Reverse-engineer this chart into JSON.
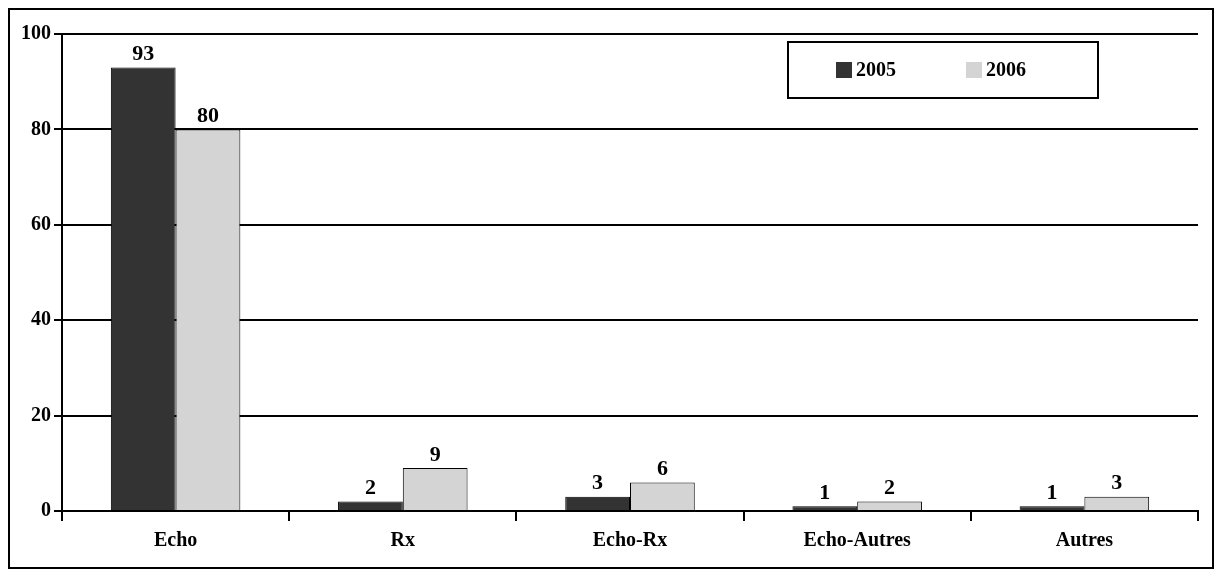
{
  "chart_data": {
    "type": "bar",
    "categories": [
      "Echo",
      "Rx",
      "Echo-Rx",
      "Echo-Autres",
      "Autres"
    ],
    "series": [
      {
        "name": "2005",
        "color": "#333333",
        "values": [
          93,
          2,
          3,
          1,
          1
        ]
      },
      {
        "name": "2006",
        "color": "#d4d4d4",
        "values": [
          80,
          9,
          6,
          2,
          3
        ]
      }
    ],
    "ylim": [
      0,
      100
    ],
    "yticks": [
      0,
      20,
      40,
      60,
      80,
      100
    ],
    "grid": "y",
    "legend": "top right",
    "data_labels": true
  }
}
